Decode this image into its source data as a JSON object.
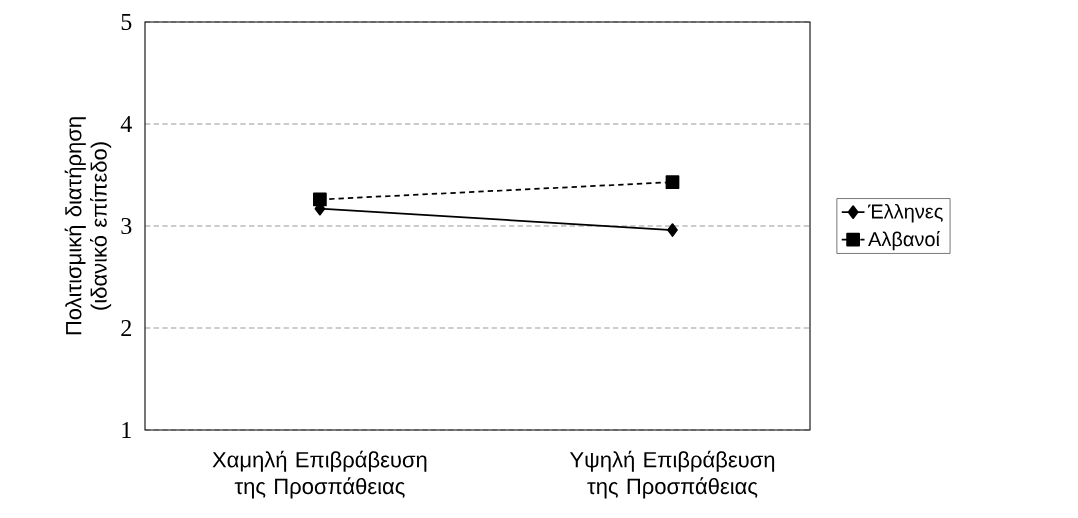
{
  "chart_data": {
    "type": "line",
    "ylabel": "Πολιτισμική διατήρηση (ιδανικό επίπεδο)",
    "categories": [
      "Χαμηλή Επιβράβευση της Προσπάθειας",
      "Υψηλή Επιβράβευση της Προσπάθειας"
    ],
    "series": [
      {
        "name": "Έλληνες",
        "color": "#000000",
        "values": [
          3.17,
          2.96
        ],
        "marker": "diamond",
        "line_style": "solid"
      },
      {
        "name": "Αλβανοί",
        "color": "#000000",
        "values": [
          3.26,
          3.43
        ],
        "marker": "square",
        "line_style": "dashed"
      }
    ],
    "ylim": [
      1,
      5
    ],
    "yticks": [
      1,
      2,
      3,
      4,
      5
    ],
    "grid": "y",
    "legend": "right"
  }
}
